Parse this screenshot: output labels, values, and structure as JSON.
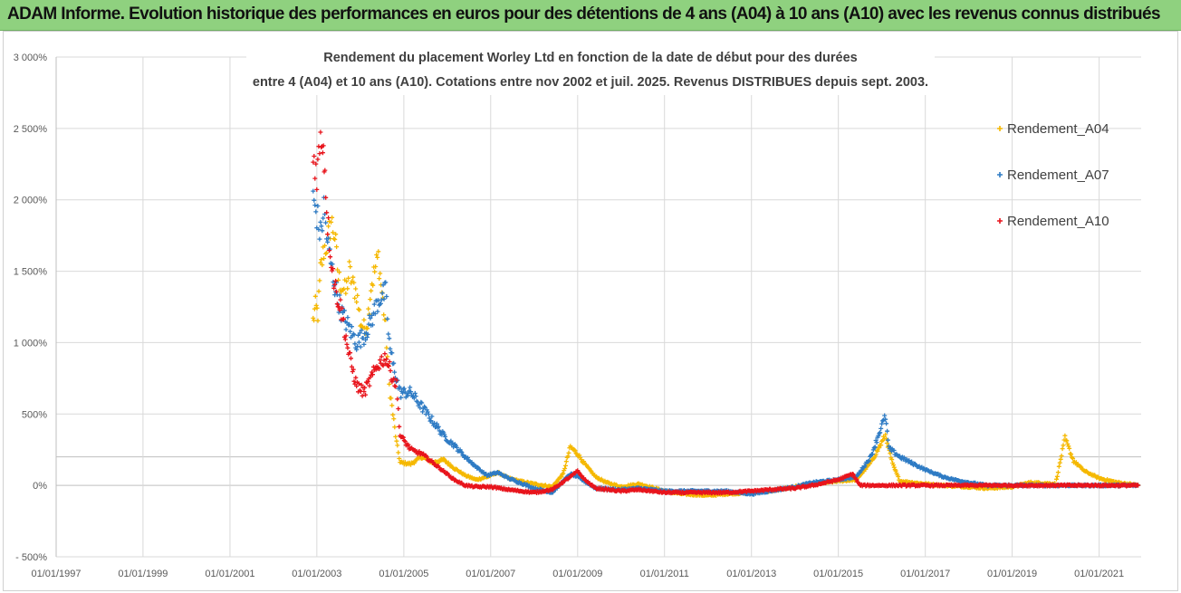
{
  "header": {
    "title": "ADAM Informe. Evolution historique des performances en euros pour des détentions de 4 ans (A04) à 10 ans (A10) avec les revenus connus distribués"
  },
  "colors": {
    "header_bg": "#8fd17f",
    "A04": "#f5b800",
    "A07": "#2e7bc4",
    "A10": "#e8141c",
    "grid": "#d9d9d9",
    "baseline": "#bfbfbf"
  },
  "chart_data": {
    "type": "scatter",
    "title_line1": "Rendement du placement Worley Ltd en fonction de la date de début pour des durées",
    "title_line2": "entre 4 (A04) et 10 ans (A10).  Cotations entre nov 2002 et juil. 2025. Revenus DISTRIBUES depuis sept. 2003.",
    "legend_position": "right",
    "grid": true,
    "x_axis": {
      "type": "date",
      "range": [
        "1997-01-01",
        "2021-12-20"
      ],
      "tick_labels": [
        "01/01/1997",
        "01/01/1999",
        "01/01/2001",
        "01/01/2003",
        "01/01/2005",
        "01/01/2007",
        "01/01/2009",
        "01/01/2011",
        "01/01/2013",
        "01/01/2015",
        "01/01/2017",
        "01/01/2019",
        "01/01/2021"
      ]
    },
    "y_axis": {
      "range": [
        -500,
        3000
      ],
      "tick_values": [
        3000,
        2500,
        2000,
        1500,
        1000,
        500,
        0,
        -500
      ],
      "tick_labels": [
        "3 000%",
        "2 500%",
        "2 000%",
        "1 500%",
        "1 000%",
        "500%",
        "0%",
        "- 500%"
      ]
    },
    "series": [
      {
        "name": "Rendement_A04",
        "color": "#f5b800",
        "points": [
          [
            "2002-12-01",
            1150
          ],
          [
            "2002-12-20",
            1250
          ],
          [
            "2003-01-10",
            1200
          ],
          [
            "2003-02-01",
            1500
          ],
          [
            "2003-03-01",
            1650
          ],
          [
            "2003-04-01",
            1700
          ],
          [
            "2003-05-01",
            1850
          ],
          [
            "2003-06-01",
            1750
          ],
          [
            "2003-07-01",
            1450
          ],
          [
            "2003-08-01",
            1400
          ],
          [
            "2003-09-01",
            1350
          ],
          [
            "2003-10-01",
            1500
          ],
          [
            "2003-11-01",
            1400
          ],
          [
            "2003-12-01",
            1350
          ],
          [
            "2004-01-01",
            1150
          ],
          [
            "2004-02-01",
            1100
          ],
          [
            "2004-03-01",
            1150
          ],
          [
            "2004-04-01",
            1400
          ],
          [
            "2004-05-01",
            1500
          ],
          [
            "2004-06-01",
            1600
          ],
          [
            "2004-07-01",
            1350
          ],
          [
            "2004-08-01",
            1100
          ],
          [
            "2004-09-01",
            700
          ],
          [
            "2004-10-01",
            500
          ],
          [
            "2004-11-01",
            300
          ],
          [
            "2004-12-01",
            160
          ],
          [
            "2005-03-01",
            150
          ],
          [
            "2005-06-01",
            200
          ],
          [
            "2005-09-01",
            160
          ],
          [
            "2005-12-01",
            180
          ],
          [
            "2006-03-01",
            120
          ],
          [
            "2006-06-01",
            70
          ],
          [
            "2006-09-01",
            40
          ],
          [
            "2006-12-01",
            60
          ],
          [
            "2007-03-01",
            90
          ],
          [
            "2007-06-01",
            50
          ],
          [
            "2007-09-01",
            30
          ],
          [
            "2008-01-01",
            10
          ],
          [
            "2008-06-01",
            -10
          ],
          [
            "2008-09-01",
            80
          ],
          [
            "2008-11-01",
            270
          ],
          [
            "2009-01-01",
            220
          ],
          [
            "2009-03-01",
            150
          ],
          [
            "2009-06-01",
            60
          ],
          [
            "2009-09-01",
            20
          ],
          [
            "2010-01-01",
            -10
          ],
          [
            "2010-06-01",
            10
          ],
          [
            "2011-01-01",
            -40
          ],
          [
            "2011-06-01",
            -60
          ],
          [
            "2012-01-01",
            -70
          ],
          [
            "2012-06-01",
            -60
          ],
          [
            "2013-01-01",
            -50
          ],
          [
            "2013-06-01",
            -40
          ],
          [
            "2014-01-01",
            -10
          ],
          [
            "2014-06-01",
            10
          ],
          [
            "2015-01-01",
            30
          ],
          [
            "2015-06-01",
            40
          ],
          [
            "2015-10-01",
            160
          ],
          [
            "2016-01-01",
            300
          ],
          [
            "2016-02-01",
            350
          ],
          [
            "2016-04-01",
            150
          ],
          [
            "2016-06-01",
            30
          ],
          [
            "2017-01-01",
            10
          ],
          [
            "2017-06-01",
            0
          ],
          [
            "2018-01-01",
            -10
          ],
          [
            "2018-06-01",
            -20
          ],
          [
            "2019-01-01",
            -10
          ],
          [
            "2019-06-01",
            20
          ],
          [
            "2020-01-01",
            10
          ],
          [
            "2020-03-20",
            330
          ],
          [
            "2020-06-01",
            170
          ],
          [
            "2020-09-01",
            100
          ],
          [
            "2021-01-01",
            50
          ],
          [
            "2021-06-01",
            20
          ],
          [
            "2021-12-01",
            0
          ]
        ]
      },
      {
        "name": "Rendement_A07",
        "color": "#2e7bc4",
        "points": [
          [
            "2002-12-01",
            2000
          ],
          [
            "2003-01-01",
            1900
          ],
          [
            "2003-02-01",
            1750
          ],
          [
            "2003-03-01",
            1950
          ],
          [
            "2003-04-01",
            1700
          ],
          [
            "2003-06-01",
            1400
          ],
          [
            "2003-08-01",
            1200
          ],
          [
            "2003-10-01",
            1100
          ],
          [
            "2003-12-01",
            1000
          ],
          [
            "2004-02-01",
            1050
          ],
          [
            "2004-04-01",
            1150
          ],
          [
            "2004-06-01",
            1300
          ],
          [
            "2004-08-01",
            1350
          ],
          [
            "2004-09-01",
            1000
          ],
          [
            "2004-10-01",
            850
          ],
          [
            "2004-12-01",
            650
          ],
          [
            "2005-03-01",
            650
          ],
          [
            "2005-06-01",
            550
          ],
          [
            "2005-09-01",
            450
          ],
          [
            "2005-12-01",
            350
          ],
          [
            "2006-03-01",
            280
          ],
          [
            "2006-06-01",
            200
          ],
          [
            "2006-09-01",
            130
          ],
          [
            "2006-12-01",
            70
          ],
          [
            "2007-03-01",
            90
          ],
          [
            "2007-06-01",
            50
          ],
          [
            "2008-01-01",
            -20
          ],
          [
            "2008-06-01",
            -50
          ],
          [
            "2008-11-01",
            80
          ],
          [
            "2009-01-01",
            60
          ],
          [
            "2009-06-01",
            -20
          ],
          [
            "2010-01-01",
            -30
          ],
          [
            "2010-06-01",
            -20
          ],
          [
            "2011-01-01",
            -40
          ],
          [
            "2011-06-01",
            -40
          ],
          [
            "2012-01-01",
            -40
          ],
          [
            "2012-06-01",
            -40
          ],
          [
            "2013-01-01",
            -60
          ],
          [
            "2013-06-01",
            -40
          ],
          [
            "2014-01-01",
            -10
          ],
          [
            "2014-06-01",
            20
          ],
          [
            "2015-01-01",
            40
          ],
          [
            "2015-06-01",
            60
          ],
          [
            "2015-10-01",
            200
          ],
          [
            "2016-01-01",
            420
          ],
          [
            "2016-02-01",
            480
          ],
          [
            "2016-03-01",
            260
          ],
          [
            "2016-06-01",
            200
          ],
          [
            "2016-09-01",
            160
          ],
          [
            "2017-01-01",
            110
          ],
          [
            "2017-06-01",
            60
          ],
          [
            "2017-09-01",
            40
          ],
          [
            "2018-01-01",
            20
          ],
          [
            "2018-06-01",
            0
          ],
          [
            "2019-01-01",
            0
          ],
          [
            "2020-01-01",
            0
          ],
          [
            "2021-01-01",
            0
          ],
          [
            "2021-12-01",
            0
          ]
        ]
      },
      {
        "name": "Rendement_A10",
        "color": "#e8141c",
        "points": [
          [
            "2002-12-01",
            2300
          ],
          [
            "2003-01-01",
            2200
          ],
          [
            "2003-02-01",
            2400
          ],
          [
            "2003-02-20",
            2450
          ],
          [
            "2003-03-10",
            2200
          ],
          [
            "2003-04-01",
            1850
          ],
          [
            "2003-05-01",
            1600
          ],
          [
            "2003-06-01",
            1400
          ],
          [
            "2003-08-01",
            1200
          ],
          [
            "2003-10-01",
            900
          ],
          [
            "2003-12-01",
            700
          ],
          [
            "2004-02-01",
            650
          ],
          [
            "2004-04-01",
            750
          ],
          [
            "2004-06-01",
            850
          ],
          [
            "2004-08-01",
            900
          ],
          [
            "2004-10-01",
            750
          ],
          [
            "2004-11-01",
            700
          ],
          [
            "2004-12-01",
            350
          ],
          [
            "2005-03-01",
            250
          ],
          [
            "2005-06-01",
            220
          ],
          [
            "2005-09-01",
            160
          ],
          [
            "2005-12-01",
            100
          ],
          [
            "2006-03-01",
            40
          ],
          [
            "2006-06-01",
            0
          ],
          [
            "2006-09-01",
            -10
          ],
          [
            "2007-01-01",
            -10
          ],
          [
            "2007-06-01",
            -30
          ],
          [
            "2008-01-01",
            -50
          ],
          [
            "2008-06-01",
            -30
          ],
          [
            "2008-11-01",
            60
          ],
          [
            "2009-01-01",
            100
          ],
          [
            "2009-03-01",
            40
          ],
          [
            "2009-06-01",
            -20
          ],
          [
            "2010-01-01",
            -40
          ],
          [
            "2010-06-01",
            -30
          ],
          [
            "2011-01-01",
            -50
          ],
          [
            "2011-06-01",
            -50
          ],
          [
            "2012-01-01",
            -50
          ],
          [
            "2012-06-01",
            -50
          ],
          [
            "2013-01-01",
            -40
          ],
          [
            "2013-06-01",
            -30
          ],
          [
            "2014-01-01",
            -20
          ],
          [
            "2014-06-01",
            0
          ],
          [
            "2015-01-01",
            40
          ],
          [
            "2015-05-01",
            80
          ],
          [
            "2015-07-01",
            0
          ],
          [
            "2016-01-01",
            0
          ],
          [
            "2017-01-01",
            0
          ],
          [
            "2018-01-01",
            0
          ],
          [
            "2019-01-01",
            0
          ],
          [
            "2020-01-01",
            0
          ],
          [
            "2021-01-01",
            0
          ],
          [
            "2021-12-01",
            0
          ]
        ]
      }
    ]
  }
}
